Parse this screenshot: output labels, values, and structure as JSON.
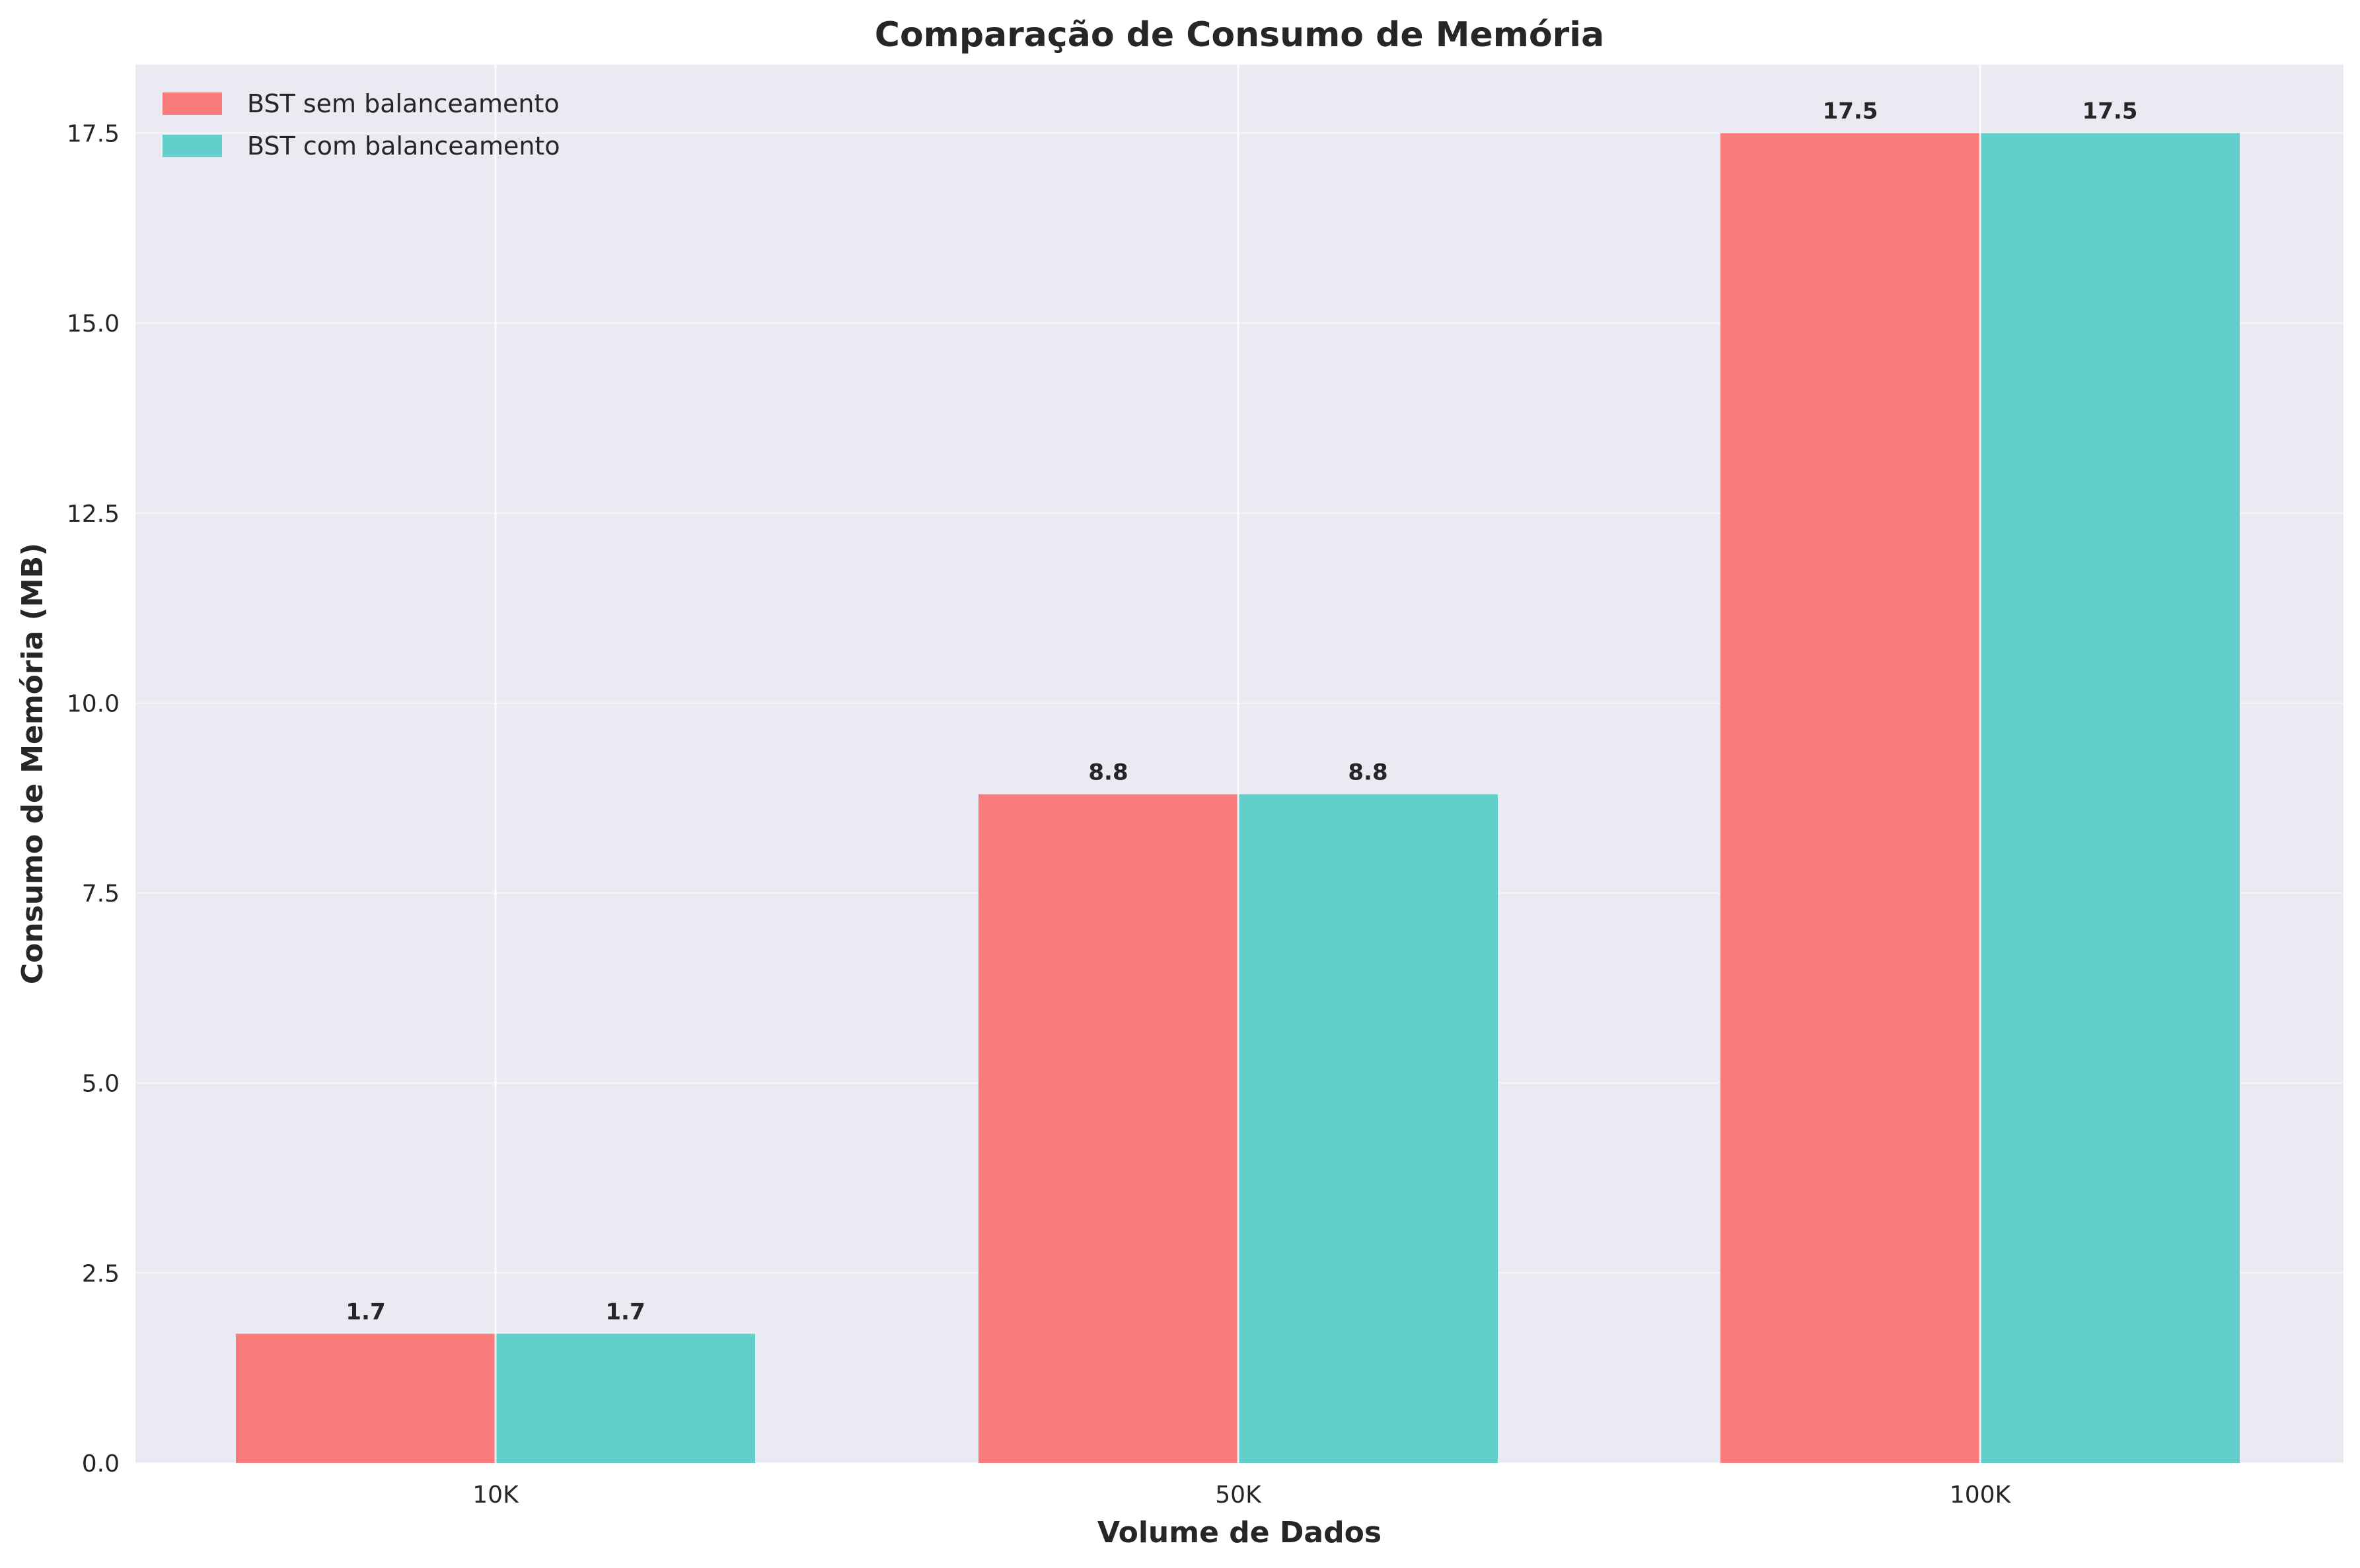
{
  "chart_data": {
    "type": "bar",
    "title": "Comparação de Consumo de Memória",
    "xlabel": "Volume de Dados",
    "ylabel": "Consumo de Memória (MB)",
    "categories": [
      "10K",
      "50K",
      "100K"
    ],
    "series": [
      {
        "name": "BST sem balanceamento",
        "color": "#fa7b7b",
        "values": [
          1.7,
          8.8,
          17.5
        ],
        "labels": [
          "1.7",
          "8.8",
          "17.5"
        ]
      },
      {
        "name": "BST com balanceamento",
        "color": "#62cfca",
        "values": [
          1.7,
          8.8,
          17.5
        ],
        "labels": [
          "1.7",
          "8.8",
          "17.5"
        ]
      }
    ],
    "ylim": [
      0,
      18.4
    ],
    "yticks": [
      0,
      2.5,
      5,
      7.5,
      10,
      12.5,
      15,
      17.5
    ],
    "ytick_labels": [
      "0.0",
      "2.5",
      "5.0",
      "7.5",
      "10.0",
      "12.5",
      "15.0",
      "17.5"
    ],
    "grid": true,
    "legend_position": "top-left",
    "plot_background": "#eaeaf2"
  }
}
